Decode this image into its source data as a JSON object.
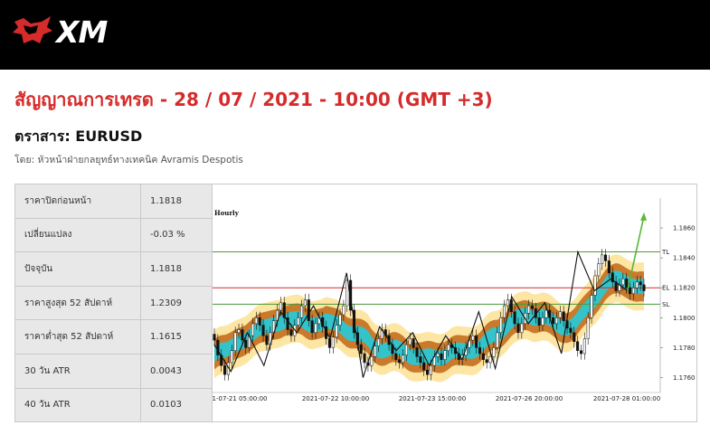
{
  "header": {
    "logo_text": "XM",
    "bg": "#000000",
    "logo_red": "#d52b2b"
  },
  "title": "สัญญาณการเทรด - 28 / 07 / 2021 - 10:00 (GMT +3)",
  "instrument": "ตราสาร: EURUSD",
  "byline": "โดย: หัวหน้าฝ่ายกลยุทธ์ทางเทคนิค Avramis Despotis",
  "stats": [
    {
      "label": "ราคาปิดก่อนหน้า",
      "value": "1.1818"
    },
    {
      "label": "เปลี่ยนแปลง",
      "value": "-0.03 %"
    },
    {
      "label": "ปัจจุบัน",
      "value": "1.1818"
    },
    {
      "label": "ราคาสูงสุด 52 สัปดาห์",
      "value": "1.2309"
    },
    {
      "label": "ราคาต่ำสุด 52 สัปดาห์",
      "value": "1.1615"
    },
    {
      "label": "30 วัน ATR",
      "value": "0.0043"
    },
    {
      "label": "40 วัน ATR",
      "value": "0.0103"
    }
  ],
  "chart_data": {
    "type": "candlestick",
    "timeframe": "Hourly",
    "ylim": [
      1.175,
      1.188
    ],
    "y_ticks": [
      "1.1860",
      "1.1840",
      "1.1820",
      "1.1800",
      "1.1780",
      "1.1760"
    ],
    "x_ticks": [
      "1-07-21 05:00:00",
      "2021-07-22 10:00:00",
      "2021-07-23 15:00:00",
      "2021-07-26 20:00:00",
      "2021-07-28 01:00:00"
    ],
    "levels": [
      {
        "label": "TL",
        "value": 1.1844,
        "color": "#4a9a3a"
      },
      {
        "label": "EL",
        "value": 1.182,
        "color": "#d52b2b"
      },
      {
        "label": "SL",
        "value": 1.1809,
        "color": "#4a9a3a"
      }
    ],
    "bands_colors": {
      "outer": "#fde5a3",
      "middle": "#c97a2c",
      "inner": "#34c3c9"
    },
    "close_series": [
      1.1785,
      1.1775,
      1.1768,
      1.1762,
      1.177,
      1.1778,
      1.179,
      1.1792,
      1.1785,
      1.178,
      1.1788,
      1.1796,
      1.18,
      1.1795,
      1.1788,
      1.1782,
      1.179,
      1.1798,
      1.1805,
      1.181,
      1.18,
      1.1792,
      1.1788,
      1.1795,
      1.18,
      1.1808,
      1.1812,
      1.1798,
      1.179,
      1.1796,
      1.18,
      1.1794,
      1.1786,
      1.178,
      1.1787,
      1.1795,
      1.1802,
      1.1808,
      1.1825,
      1.1805,
      1.179,
      1.1782,
      1.1776,
      1.177,
      1.1768,
      1.1774,
      1.1781,
      1.1786,
      1.1792,
      1.1788,
      1.1782,
      1.1776,
      1.1772,
      1.177,
      1.1775,
      1.1782,
      1.1786,
      1.178,
      1.1774,
      1.177,
      1.1765,
      1.1762,
      1.1768,
      1.1774,
      1.1776,
      1.1772,
      1.1778,
      1.1782,
      1.178,
      1.1776,
      1.1772,
      1.1775,
      1.178,
      1.1785,
      1.1788,
      1.178,
      1.1776,
      1.1772,
      1.177,
      1.1774,
      1.178,
      1.179,
      1.18,
      1.1808,
      1.1812,
      1.1804,
      1.1796,
      1.179,
      1.1796,
      1.1803,
      1.1808,
      1.1806,
      1.18,
      1.1795,
      1.18,
      1.1805,
      1.18,
      1.1796,
      1.18,
      1.1804,
      1.1798,
      1.1793,
      1.179,
      1.1784,
      1.1778,
      1.1776,
      1.1786,
      1.18,
      1.1815,
      1.1828,
      1.1836,
      1.1842,
      1.1838,
      1.183,
      1.1824,
      1.1818,
      1.1822,
      1.1826,
      1.182,
      1.1816,
      1.182,
      1.1824,
      1.1822,
      1.1818
    ],
    "zigzag": [
      1.1782,
      1.1764,
      1.179,
      1.1768,
      1.1804,
      1.179,
      1.1808,
      1.1786,
      1.183,
      1.176,
      1.1794,
      1.1778,
      1.179,
      1.1768,
      1.1788,
      1.1772,
      1.1804,
      1.1766,
      1.1814,
      1.1796,
      1.181,
      1.1776,
      1.1844,
      1.1818,
      1.1826,
      1.1818,
      1.1868
    ]
  }
}
